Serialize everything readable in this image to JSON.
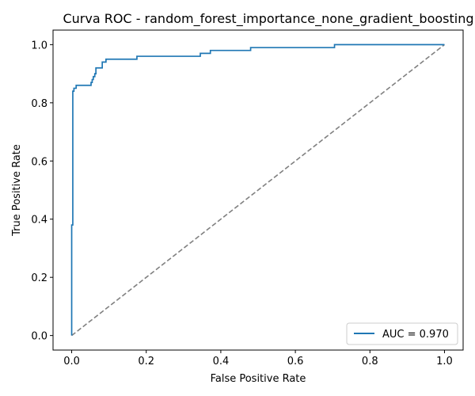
{
  "chart_data": {
    "type": "line",
    "title": "Curva ROC - random_forest_importance_none_gradient_boosting",
    "xlabel": "False Positive Rate",
    "ylabel": "True Positive Rate",
    "xlim": [
      -0.05,
      1.05
    ],
    "ylim": [
      -0.05,
      1.05
    ],
    "xticks": [
      "0.0",
      "0.2",
      "0.4",
      "0.6",
      "0.8",
      "1.0"
    ],
    "yticks": [
      "0.0",
      "0.2",
      "0.4",
      "0.6",
      "0.8",
      "1.0"
    ],
    "grid": false,
    "legend": {
      "location": "lower right",
      "entries": [
        "AUC = 0.970"
      ]
    },
    "series": [
      {
        "name": "AUC = 0.970",
        "color": "#1f77b4",
        "style": "solid",
        "x": [
          0,
          0,
          0.003,
          0.003,
          0.006,
          0.006,
          0.012,
          0.012,
          0.052,
          0.052,
          0.055,
          0.055,
          0.058,
          0.058,
          0.062,
          0.062,
          0.065,
          0.065,
          0.082,
          0.082,
          0.092,
          0.092,
          0.175,
          0.175,
          0.345,
          0.345,
          0.372,
          0.372,
          0.48,
          0.48,
          0.705,
          0.705,
          1.0
        ],
        "y": [
          0,
          0.38,
          0.38,
          0.84,
          0.84,
          0.85,
          0.85,
          0.86,
          0.86,
          0.87,
          0.87,
          0.88,
          0.88,
          0.89,
          0.89,
          0.9,
          0.9,
          0.92,
          0.92,
          0.94,
          0.94,
          0.95,
          0.95,
          0.96,
          0.96,
          0.97,
          0.97,
          0.98,
          0.98,
          0.99,
          0.99,
          1.0,
          1.0
        ]
      },
      {
        "color": "#808080",
        "style": "dashed",
        "x": [
          0,
          1
        ],
        "y": [
          0,
          1
        ]
      }
    ]
  }
}
